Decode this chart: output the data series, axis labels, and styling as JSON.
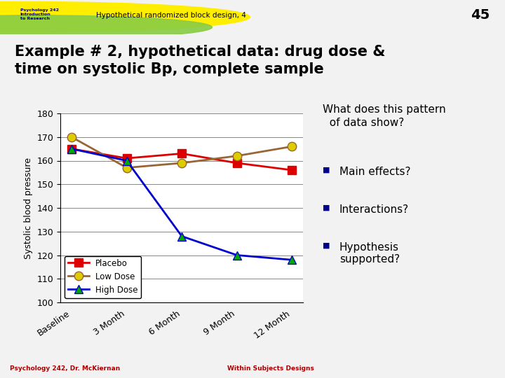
{
  "title": "Example # 2, hypothetical data: drug dose &\ntime on systolic Bp, complete sample",
  "slide_title": "Hypothetical randomized block design, 4",
  "slide_number": "45",
  "ylabel": "Systolic blood pressure",
  "xlabel_ticks": [
    "Baseline",
    "3 Month",
    "6 Month",
    "9 Month",
    "12 Month"
  ],
  "ylim": [
    100,
    180
  ],
  "yticks": [
    100,
    110,
    120,
    130,
    140,
    150,
    160,
    170,
    180
  ],
  "placebo": [
    165,
    161,
    163,
    159,
    156
  ],
  "low_dose": [
    170,
    157,
    159,
    162,
    166
  ],
  "high_dose": [
    165,
    160,
    128,
    120,
    118
  ],
  "placebo_color": "#dd0000",
  "low_dose_color": "#ddcc00",
  "high_dose_color": "#00aa00",
  "line_color_placebo": "#dd0000",
  "line_color_low_dose": "#996633",
  "line_color_high_dose": "#0000cc",
  "bg_color": "#ffffff",
  "slide_bg": "#f0f0f0",
  "header_bg": "#cc0000",
  "annotation_text": "What does this pattern\n  of data show?",
  "bullet1": "Main effects?",
  "bullet2": "Interactions?",
  "bullet3": "Hypothesis\nsupported?",
  "footer_left": "Psychology 242, Dr. McKiernan",
  "footer_right": "Within Subjects Designs",
  "psych_label": "Psychology 242\nIntroduction\nto Research"
}
